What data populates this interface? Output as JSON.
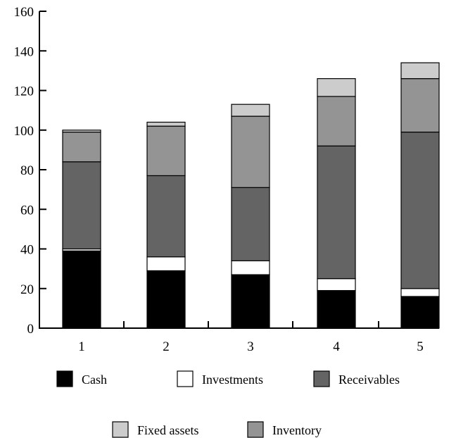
{
  "chart_data": {
    "type": "bar",
    "stacked": true,
    "categories": [
      "1",
      "2",
      "3",
      "4",
      "5"
    ],
    "ylim": [
      0,
      160
    ],
    "yticks": [
      "0",
      "20",
      "40",
      "60",
      "80",
      "100",
      "120",
      "140",
      "160"
    ],
    "title": "",
    "xlabel": "",
    "ylabel": "",
    "grid": false,
    "legend_position": "bottom",
    "series": [
      {
        "name": "Cash",
        "color": "#000000",
        "values": [
          39,
          29,
          27,
          19,
          16
        ]
      },
      {
        "name": "Investments",
        "color": "#ffffff",
        "values": [
          1,
          7,
          7,
          6,
          4
        ]
      },
      {
        "name": "Receivables",
        "color": "#646464",
        "values": [
          44,
          41,
          37,
          67,
          79
        ]
      },
      {
        "name": "Inventory",
        "color": "#949494",
        "values": [
          15,
          25,
          36,
          25,
          27
        ]
      },
      {
        "name": "Fixed assets",
        "color": "#cccccc",
        "values": [
          1,
          2,
          6,
          9,
          8
        ]
      }
    ],
    "legend_order": [
      "Cash",
      "Investments",
      "Receivables",
      "Fixed assets",
      "Inventory"
    ]
  }
}
